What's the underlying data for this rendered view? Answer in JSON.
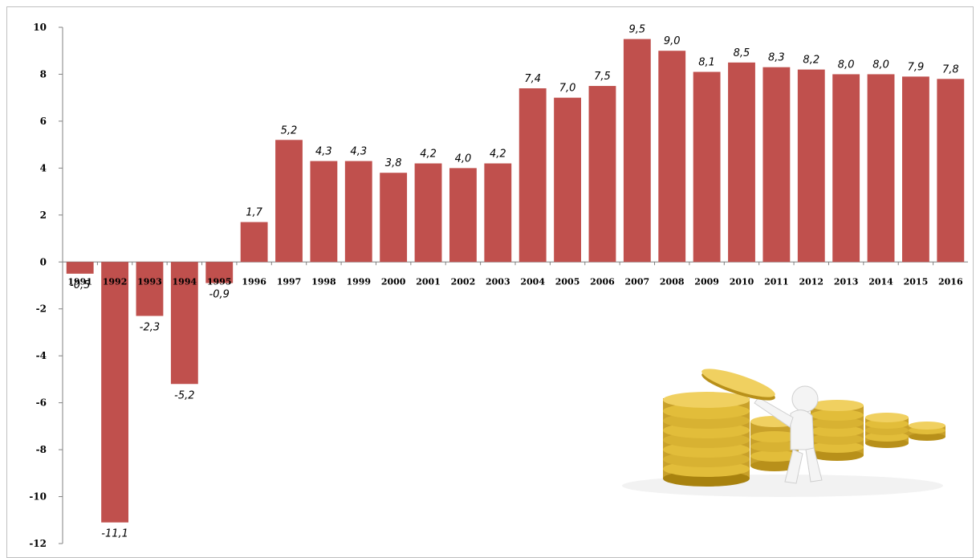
{
  "chart_data": {
    "type": "bar",
    "title": "",
    "xlabel": "",
    "ylabel": "",
    "ylim": [
      -12,
      10
    ],
    "yticks": [
      10,
      8,
      6,
      4,
      2,
      0,
      -2,
      -4,
      -6,
      -8,
      -10,
      -12
    ],
    "grid": false,
    "legend": "none",
    "bar_color": "#c0504d",
    "categories": [
      "1991",
      "1992",
      "1993",
      "1994",
      "1995",
      "1996",
      "1997",
      "1998",
      "1999",
      "2000",
      "2001",
      "2002",
      "2003",
      "2004",
      "2005",
      "2006",
      "2007",
      "2008",
      "2009",
      "2010",
      "2011",
      "2012",
      "2013",
      "2014",
      "2015",
      "2016"
    ],
    "values": [
      -0.5,
      -11.1,
      -2.3,
      -5.2,
      -0.9,
      1.7,
      5.2,
      4.3,
      4.3,
      3.8,
      4.2,
      4.0,
      4.2,
      7.4,
      7.0,
      7.5,
      9.5,
      9.0,
      8.1,
      8.5,
      8.3,
      8.2,
      8.0,
      8.0,
      7.9,
      7.8
    ],
    "data_labels": [
      "-0,5",
      "-11,1",
      "-2,3",
      "-5,2",
      "-0,9",
      "1,7",
      "5,2",
      "4,3",
      "4,3",
      "3,8",
      "4,2",
      "4,0",
      "4,2",
      "7,4",
      "7,0",
      "7,5",
      "9,5",
      "9,0",
      "8,1",
      "8,5",
      "8,3",
      "8,2",
      "8,0",
      "8,0",
      "7,9",
      "7,8"
    ]
  },
  "illustration": {
    "icon": "coins-figure-icon",
    "gold": "#e8c440",
    "dark_gold": "#b8901a"
  }
}
